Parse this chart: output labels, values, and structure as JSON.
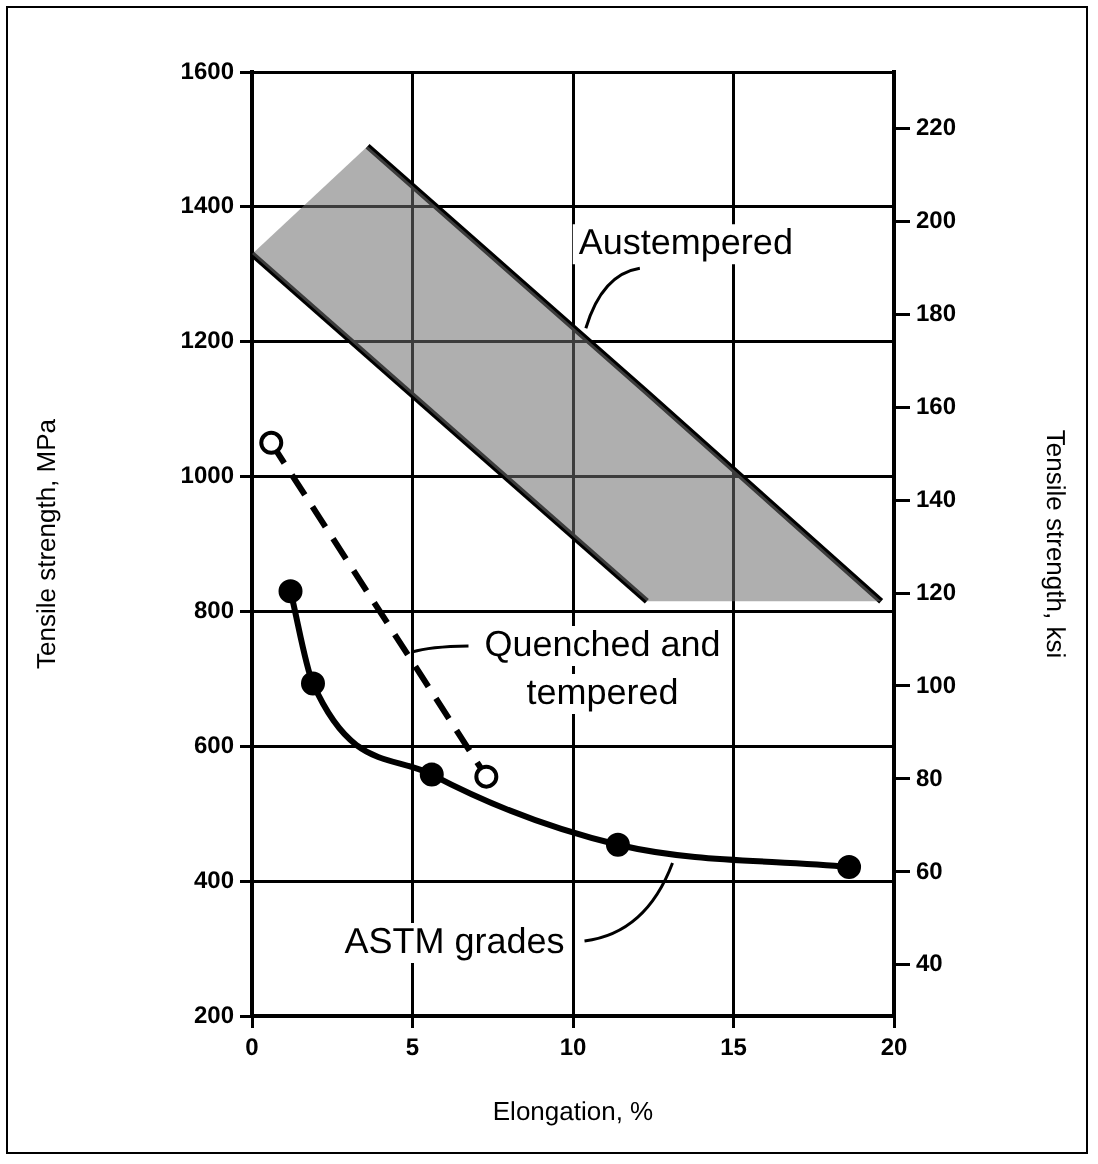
{
  "chart_data": {
    "type": "line",
    "xlabel": "Elongation, %",
    "ylabel": "Tensile strength, MPa",
    "y2label": "Tensile strength, ksi",
    "xlim": [
      0,
      20
    ],
    "xticks": [
      0,
      5,
      10,
      15,
      20
    ],
    "ylim": [
      200,
      1600
    ],
    "yticks": [
      200,
      400,
      600,
      800,
      1000,
      1200,
      1400,
      1600
    ],
    "y2lim": [
      29,
      232.1
    ],
    "y2ticks": [
      40,
      60,
      80,
      100,
      120,
      140,
      160,
      180,
      200,
      220
    ],
    "grid": true,
    "legend": false,
    "series": [
      {
        "color": "#000000",
        "x": [
          0,
          3.6,
          12.3,
          19.6
        ],
        "values": [
          null,
          1490,
          1125,
          815
        ],
        "lower": [
          1330,
          1179,
          815,
          815
        ],
        "upper": [
          1330,
          1490,
          1125,
          815
        ],
        "marker": "none",
        "line_style": "solid"
      },
      {
        "color": "#000000",
        "x": [
          0,
          12.3
        ],
        "values": [
          1330,
          815
        ],
        "marker": "none",
        "line_style": "solid"
      },
      {
        "color": "#000000",
        "x": [
          0.6,
          7.3
        ],
        "values": [
          1050,
          555
        ],
        "marker": "circle",
        "line_style": "dashed"
      },
      {
        "color": "#000000",
        "x": [
          1.2,
          1.9,
          5.6,
          11.4,
          18.6
        ],
        "values": [
          830,
          693,
          558,
          454,
          421
        ],
        "marker": "circle",
        "line_style": "solid"
      }
    ],
    "annotations": [
      {
        "text": "Austempered",
        "x": 10.4,
        "y": 1220
      },
      {
        "text": "Quenched and\ntempered",
        "x": 5,
        "y": 740
      },
      {
        "text": "ASTM grades",
        "x": 13.1,
        "y": 427
      }
    ]
  }
}
